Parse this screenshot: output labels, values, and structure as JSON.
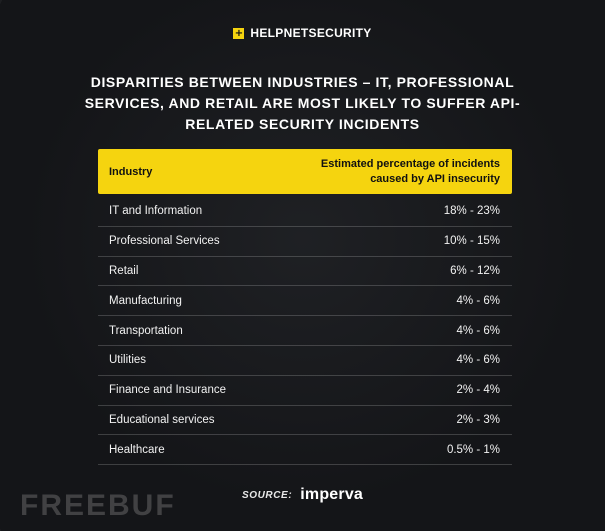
{
  "brand": {
    "icon_text": "+",
    "name": "HELPNETSECURITY"
  },
  "chart_data": {
    "type": "table",
    "title": "DISPARITIES BETWEEN INDUSTRIES – IT, PROFESSIONAL SERVICES, AND RETAIL ARE MOST LIKELY TO SUFFER API-RELATED SECURITY INCIDENTS",
    "columns": [
      "Industry",
      "Estimated percentage of incidents caused by API insecurity"
    ],
    "rows": [
      [
        "IT and Information",
        "18% - 23%"
      ],
      [
        "Professional Services",
        "10% - 15%"
      ],
      [
        "Retail",
        "6% - 12%"
      ],
      [
        "Manufacturing",
        "4% - 6%"
      ],
      [
        "Transportation",
        "4% - 6%"
      ],
      [
        "Utilities",
        "4% - 6%"
      ],
      [
        "Finance and Insurance",
        "2% - 4%"
      ],
      [
        "Educational services",
        "2% - 3%"
      ],
      [
        "Healthcare",
        "0.5% - 1%"
      ]
    ],
    "header_color": "#f5d40f"
  },
  "source": {
    "label": "SOURCE:",
    "logo": "imperva"
  },
  "watermark": "FREEBUF"
}
